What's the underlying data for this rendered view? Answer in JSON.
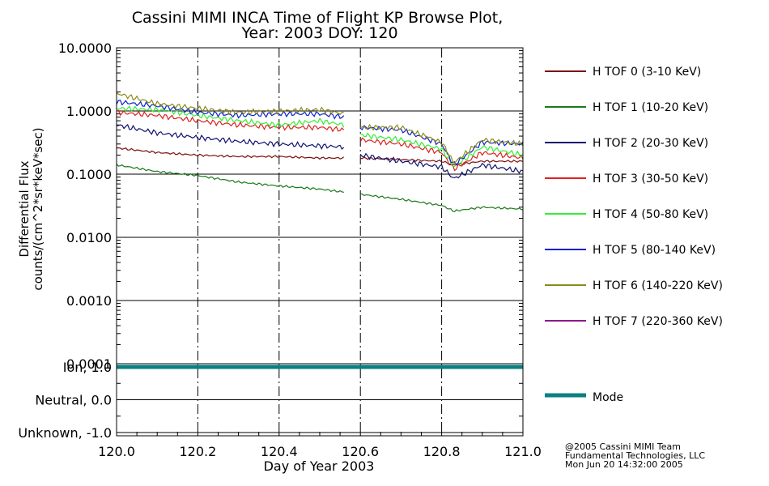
{
  "chart_data": {
    "type": "line",
    "title_line1": "Cassini MIMI INCA Time of Flight KP Browse Plot,",
    "title_line2": "Year: 2003 DOY: 120",
    "xlabel": "Day of Year 2003",
    "ylabel_line1": "Differential Flux",
    "ylabel_line2": "counts/(cm^2*sr*keV*sec)",
    "xlim": [
      120.0,
      121.0
    ],
    "x_ticks": [
      "120.0",
      "120.2",
      "120.4",
      "120.6",
      "120.8",
      "121.0"
    ],
    "x_tick_values": [
      120.0,
      120.2,
      120.4,
      120.6,
      120.8,
      121.0
    ],
    "ylim": [
      0.0001,
      10.0
    ],
    "y_scale": "log",
    "y_ticks": [
      "10.0000",
      "1.0000",
      "0.1000",
      "0.0100",
      "0.0010",
      "0.0001"
    ],
    "y_tick_values": [
      10,
      1,
      0.1,
      0.01,
      0.001,
      0.0001
    ],
    "mode_ticks": [
      "Ion, 1.0",
      "Neutral, 0.0",
      "Unknown, -1.0"
    ],
    "mode_tick_values": [
      1,
      0,
      -1
    ],
    "mode_ylim": [
      -1.1,
      1.1
    ],
    "vertical_dashed_lines": [
      120.2,
      120.4,
      120.6,
      120.8
    ],
    "data_gap": [
      120.56,
      120.6
    ],
    "series": [
      {
        "name": "H TOF 0 (3-10 KeV)",
        "color": "#7a1010",
        "x": [
          120.0,
          120.1,
          120.2,
          120.3,
          120.4,
          120.5,
          120.56,
          120.6,
          120.7,
          120.8,
          120.83,
          120.9,
          121.0
        ],
        "values": [
          0.26,
          0.22,
          0.2,
          0.19,
          0.19,
          0.18,
          0.18,
          0.18,
          0.17,
          0.16,
          0.14,
          0.16,
          0.16
        ]
      },
      {
        "name": "H TOF 1 (10-20 KeV)",
        "color": "#1a7a1a",
        "x": [
          120.0,
          120.1,
          120.2,
          120.3,
          120.4,
          120.5,
          120.56,
          120.6,
          120.7,
          120.8,
          120.83,
          120.9,
          121.0
        ],
        "values": [
          0.14,
          0.11,
          0.095,
          0.075,
          0.065,
          0.058,
          0.052,
          0.048,
          0.04,
          0.032,
          0.026,
          0.03,
          0.028
        ]
      },
      {
        "name": "H TOF 2 (20-30 KeV)",
        "color": "#101070",
        "x": [
          120.0,
          120.1,
          120.2,
          120.3,
          120.4,
          120.5,
          120.56,
          120.6,
          120.7,
          120.8,
          120.83,
          120.9,
          121.0
        ],
        "values": [
          0.6,
          0.45,
          0.38,
          0.33,
          0.3,
          0.28,
          0.27,
          0.2,
          0.16,
          0.13,
          0.085,
          0.14,
          0.11
        ]
      },
      {
        "name": "H TOF 3 (30-50 KeV)",
        "color": "#dd2020",
        "x": [
          120.0,
          120.1,
          120.2,
          120.3,
          120.4,
          120.5,
          120.56,
          120.6,
          120.7,
          120.8,
          120.83,
          120.9,
          121.0
        ],
        "values": [
          0.95,
          0.85,
          0.7,
          0.6,
          0.55,
          0.55,
          0.5,
          0.35,
          0.3,
          0.22,
          0.12,
          0.22,
          0.18
        ]
      },
      {
        "name": "H TOF 4 (50-80 KeV)",
        "color": "#33ee33",
        "x": [
          120.0,
          120.1,
          120.2,
          120.3,
          120.4,
          120.5,
          120.56,
          120.6,
          120.7,
          120.8,
          120.83,
          120.9,
          121.0
        ],
        "values": [
          1.1,
          1.05,
          0.85,
          0.7,
          0.6,
          0.7,
          0.6,
          0.42,
          0.35,
          0.25,
          0.13,
          0.27,
          0.2
        ]
      },
      {
        "name": "H TOF 5 (80-140 KeV)",
        "color": "#1020cc",
        "x": [
          120.0,
          120.1,
          120.2,
          120.3,
          120.4,
          120.5,
          120.56,
          120.6,
          120.7,
          120.8,
          120.83,
          120.9,
          121.0
        ],
        "values": [
          1.4,
          1.2,
          0.95,
          0.85,
          0.9,
          0.9,
          0.8,
          0.55,
          0.5,
          0.3,
          0.14,
          0.32,
          0.3
        ]
      },
      {
        "name": "H TOF 6 (140-220 KeV)",
        "color": "#8a8a1a",
        "x": [
          120.0,
          120.1,
          120.2,
          120.3,
          120.4,
          120.5,
          120.56,
          120.6,
          120.7,
          120.8,
          120.83,
          120.9,
          121.0
        ],
        "values": [
          1.9,
          1.3,
          1.1,
          0.95,
          1.0,
          1.05,
          0.9,
          0.55,
          0.55,
          0.32,
          0.15,
          0.35,
          0.3
        ]
      },
      {
        "name": "H TOF 7 (220-360 KeV)",
        "color": "#8a1a8a",
        "x": [],
        "values": []
      }
    ],
    "mode_series": {
      "name": "Mode",
      "color": "#0a8080",
      "x": [
        120.0,
        121.0
      ],
      "values": [
        1.0,
        1.0
      ]
    },
    "credit_lines": [
      "@2005 Cassini MIMI Team",
      "Fundamental Technologies, LLC",
      "Mon Jun 20 14:32:00 2005"
    ]
  }
}
